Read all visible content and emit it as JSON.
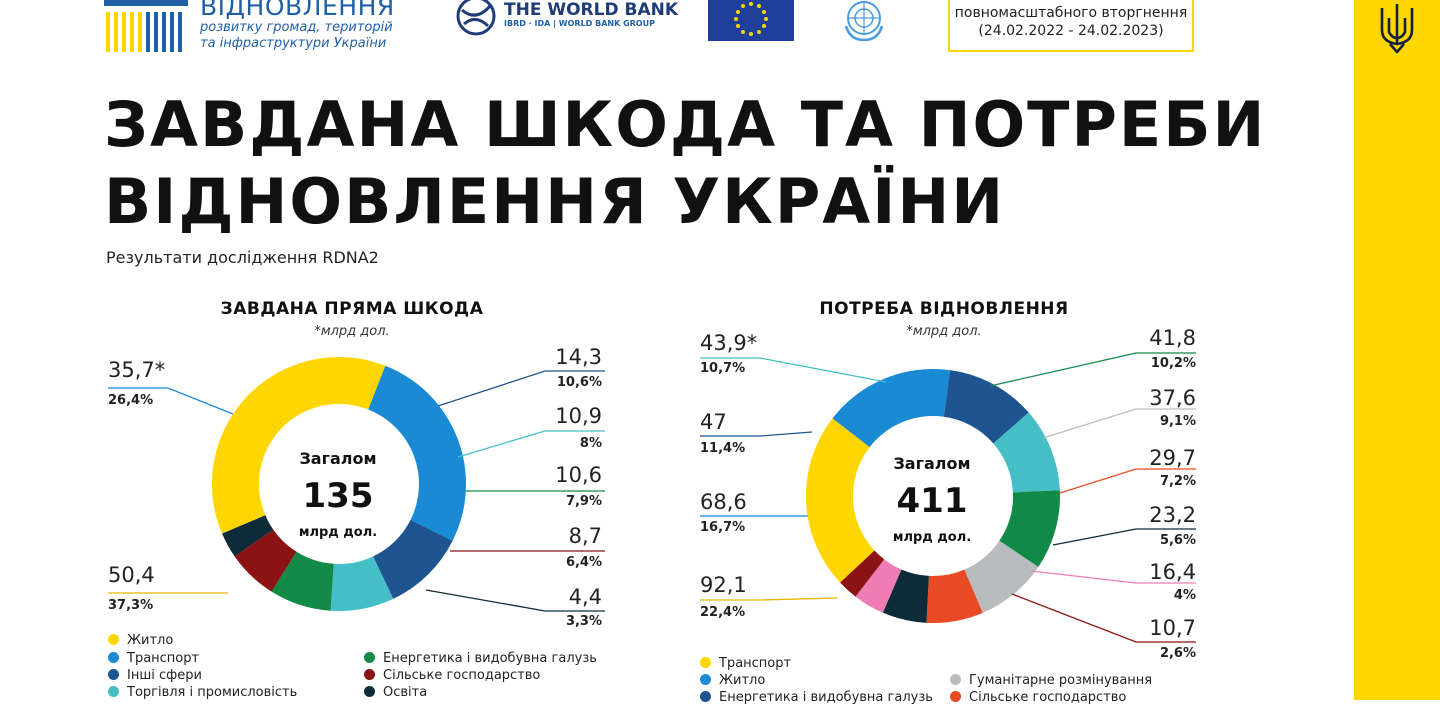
{
  "header": {
    "logo_title": "ВІДНОВЛЕННЯ",
    "logo_sub1": "розвитку громад, територій",
    "logo_sub2": "та інфраструктури України",
    "worldbank_title": "THE WORLD BANK",
    "worldbank_sub": "IBRD · IDA | WORLD BANK GROUP",
    "info_line1": "повномасштабного вторгнення",
    "info_line2": "(24.02.2022 - 24.02.2023)"
  },
  "title": "ЗАВДАНА ШКОДА ТА ПОТРЕБИ ВІДНОВЛЕННЯ УКРАЇНИ",
  "subtitle": "Результати дослідження RDNA2",
  "colors": {
    "accent_yellow": "#ffd600",
    "yellow": "#ffd600",
    "blue": "#1a8ad4",
    "dark_blue": "#1e5590",
    "teal": "#45bec6",
    "green": "#128a47",
    "dark_red": "#8b1313",
    "dark_navy": "#0d2b3a",
    "gray": "#b9bcbf",
    "orange_red": "#e84a24",
    "pink": "#ef7db3"
  },
  "chart_data": [
    {
      "type": "pie",
      "title": "ЗАВДАНА ПРЯМА ШКОДА",
      "unit": "*млрд дол.",
      "total_label": "Загалом",
      "total_value": "135",
      "total_unit": "млрд дол.",
      "slices": [
        {
          "name": "Житло",
          "value": 50.4,
          "value_label": "50,4",
          "percent": "37,3%",
          "color": "#ffd600"
        },
        {
          "name": "Транспорт",
          "value": 35.7,
          "value_label": "35,7*",
          "percent": "26,4%",
          "color": "#1a8ad4"
        },
        {
          "name": "Інші сфери",
          "value": 14.3,
          "value_label": "14,3",
          "percent": "10,6%",
          "color": "#1e5590"
        },
        {
          "name": "Торгівля і промисловість",
          "value": 10.9,
          "value_label": "10,9",
          "percent": "8%",
          "color": "#45bec6"
        },
        {
          "name": "Енергетика і видобувна галузь",
          "value": 10.6,
          "value_label": "10,6",
          "percent": "7,9%",
          "color": "#128a47"
        },
        {
          "name": "Сільське господарство",
          "value": 8.7,
          "value_label": "8,7",
          "percent": "6,4%",
          "color": "#8b1313"
        },
        {
          "name": "Освіта",
          "value": 4.4,
          "value_label": "4,4",
          "percent": "3,3%",
          "color": "#0d2b3a"
        }
      ]
    },
    {
      "type": "pie",
      "title": "ПОТРЕБА ВІДНОВЛЕННЯ",
      "unit": "*млрд дол.",
      "total_label": "Загалом",
      "total_value": "411",
      "total_unit": "млрд дол.",
      "slices": [
        {
          "name": "Транспорт",
          "value": 92.1,
          "value_label": "92,1",
          "percent": "22,4%",
          "color": "#ffd600"
        },
        {
          "name": "Житло",
          "value": 68.6,
          "value_label": "68,6",
          "percent": "16,7%",
          "color": "#1a8ad4"
        },
        {
          "name": "Енергетика і видобувна галузь",
          "value": 47,
          "value_label": "47",
          "percent": "11,4%",
          "color": "#1e5590"
        },
        {
          "name": "",
          "value": 43.9,
          "value_label": "43,9*",
          "percent": "10,7%",
          "color": "#45bec6"
        },
        {
          "name": "",
          "value": 41.8,
          "value_label": "41,8",
          "percent": "10,2%",
          "color": "#128a47"
        },
        {
          "name": "Гуманітарне розмінування",
          "value": 37.6,
          "value_label": "37,6",
          "percent": "9,1%",
          "color": "#b9bcbf"
        },
        {
          "name": "Сільське господарство",
          "value": 29.7,
          "value_label": "29,7",
          "percent": "7,2%",
          "color": "#e84a24"
        },
        {
          "name": "",
          "value": 23.2,
          "value_label": "23,2",
          "percent": "5,6%",
          "color": "#0d2b3a"
        },
        {
          "name": "",
          "value": 16.4,
          "value_label": "16,4",
          "percent": "4%",
          "color": "#ef7db3"
        },
        {
          "name": "",
          "value": 10.7,
          "value_label": "10,7",
          "percent": "2,6%",
          "color": "#8b1313"
        }
      ]
    }
  ],
  "legend1": [
    {
      "label": "Житло",
      "color": "#ffd600"
    },
    {
      "label": "Транспорт",
      "color": "#1a8ad4"
    },
    {
      "label": "Інші сфери",
      "color": "#1e5590"
    },
    {
      "label": "Торгівля і промисловість",
      "color": "#45bec6"
    },
    {
      "label": "Енергетика і видобувна галузь",
      "color": "#128a47"
    },
    {
      "label": "Сільське господарство",
      "color": "#8b1313"
    },
    {
      "label": "Освіта",
      "color": "#0d2b3a"
    }
  ],
  "legend2": [
    {
      "label": "Транспорт",
      "color": "#ffd600"
    },
    {
      "label": "Житло",
      "color": "#1a8ad4"
    },
    {
      "label": "Енергетика і видобувна галузь",
      "color": "#1e5590"
    },
    {
      "label": "Гуманітарне розмінування",
      "color": "#b9bcbf"
    },
    {
      "label": "Сільське господарство",
      "color": "#e84a24"
    }
  ]
}
